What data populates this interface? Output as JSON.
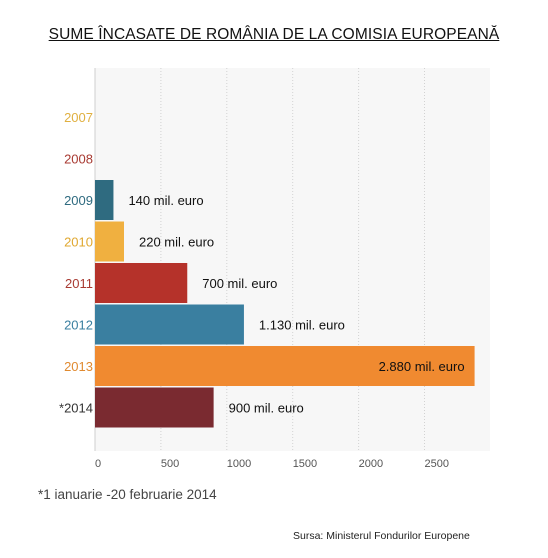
{
  "chart_data": {
    "type": "bar",
    "orientation": "horizontal",
    "title": "SUME ÎNCASATE DE ROMÂNIA DE LA COMISIA EUROPEANĂ",
    "categories": [
      "2007",
      "2008",
      "2009",
      "2010",
      "2011",
      "2012",
      "2013",
      "*2014"
    ],
    "values": [
      0,
      0,
      140,
      220,
      700,
      1130,
      2880,
      900
    ],
    "data_labels": [
      "",
      "",
      "140 mil. euro",
      "220 mil. euro",
      "700 mil. euro",
      "1.130 mil. euro",
      "2.880 mil. euro",
      "900 mil. euro"
    ],
    "colors": [
      "#e8b84a",
      "#a83a32",
      "#2f6b80",
      "#f0b040",
      "#b5322a",
      "#3a7fa0",
      "#f08a30",
      "#7a2a30"
    ],
    "category_label_colors": [
      "#e0b040",
      "#a83a32",
      "#2f6b80",
      "#e0a830",
      "#a83a32",
      "#3a7fa0",
      "#e08a30",
      "#333333"
    ],
    "x_ticks": [
      "0",
      "500",
      "1000",
      "1500",
      "2000",
      "2500"
    ],
    "xlim": [
      0,
      2900
    ],
    "grid": true,
    "footnote": "*1 ianuarie -20 februarie 2014",
    "source": "Sursa: Ministerul Fondurilor Europene"
  }
}
